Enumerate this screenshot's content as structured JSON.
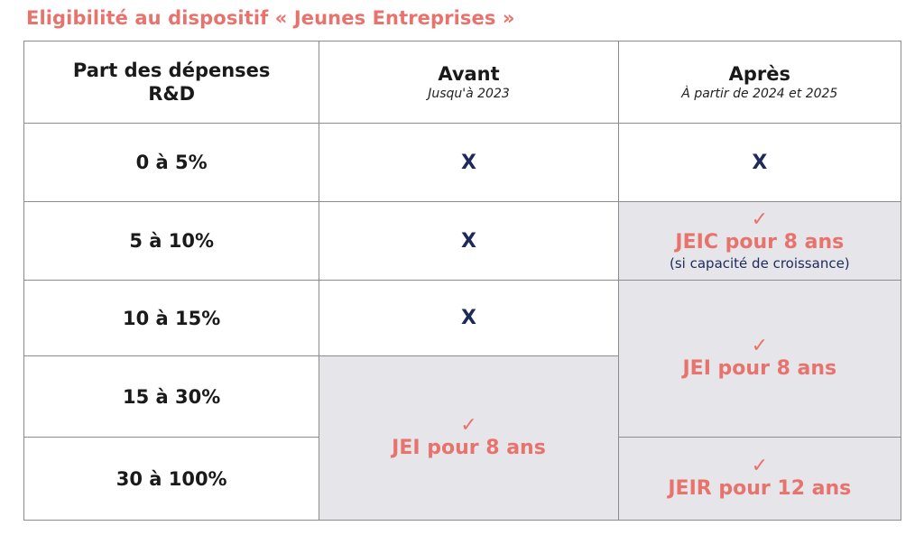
{
  "title": "Eligibilité au dispositif « Jeunes Entreprises »",
  "header": {
    "col1": "Part des dépenses R&D",
    "col2": {
      "main": "Avant",
      "sub": "Jusqu'à 2023"
    },
    "col3": {
      "main": "Après",
      "sub": "À partir de 2024 et 2025"
    }
  },
  "rows": [
    {
      "label": "0 à 5%",
      "avant": "X",
      "apres": "X"
    },
    {
      "label": "5 à 10%",
      "avant": "X",
      "apres_check": "✓",
      "apres_measure": "JEIC pour 8 ans",
      "apres_note": "(si capacité de croissance)"
    },
    {
      "label": "10 à 15%",
      "avant": "X"
    },
    {
      "label": "15 à 30%"
    },
    {
      "label": "30 à 100%"
    }
  ],
  "merged": {
    "apres_10_30": {
      "check": "✓",
      "measure": "JEI pour 8 ans"
    },
    "avant_15_100": {
      "check": "✓",
      "measure": "JEI pour 8 ans"
    },
    "apres_30_100": {
      "check": "✓",
      "measure": "JEIR pour 12 ans"
    }
  },
  "colors": {
    "accent": "#e8736c",
    "navy": "#1e2a5a",
    "grey_cell": "#e5e5ea",
    "border": "#8c8c8c"
  }
}
